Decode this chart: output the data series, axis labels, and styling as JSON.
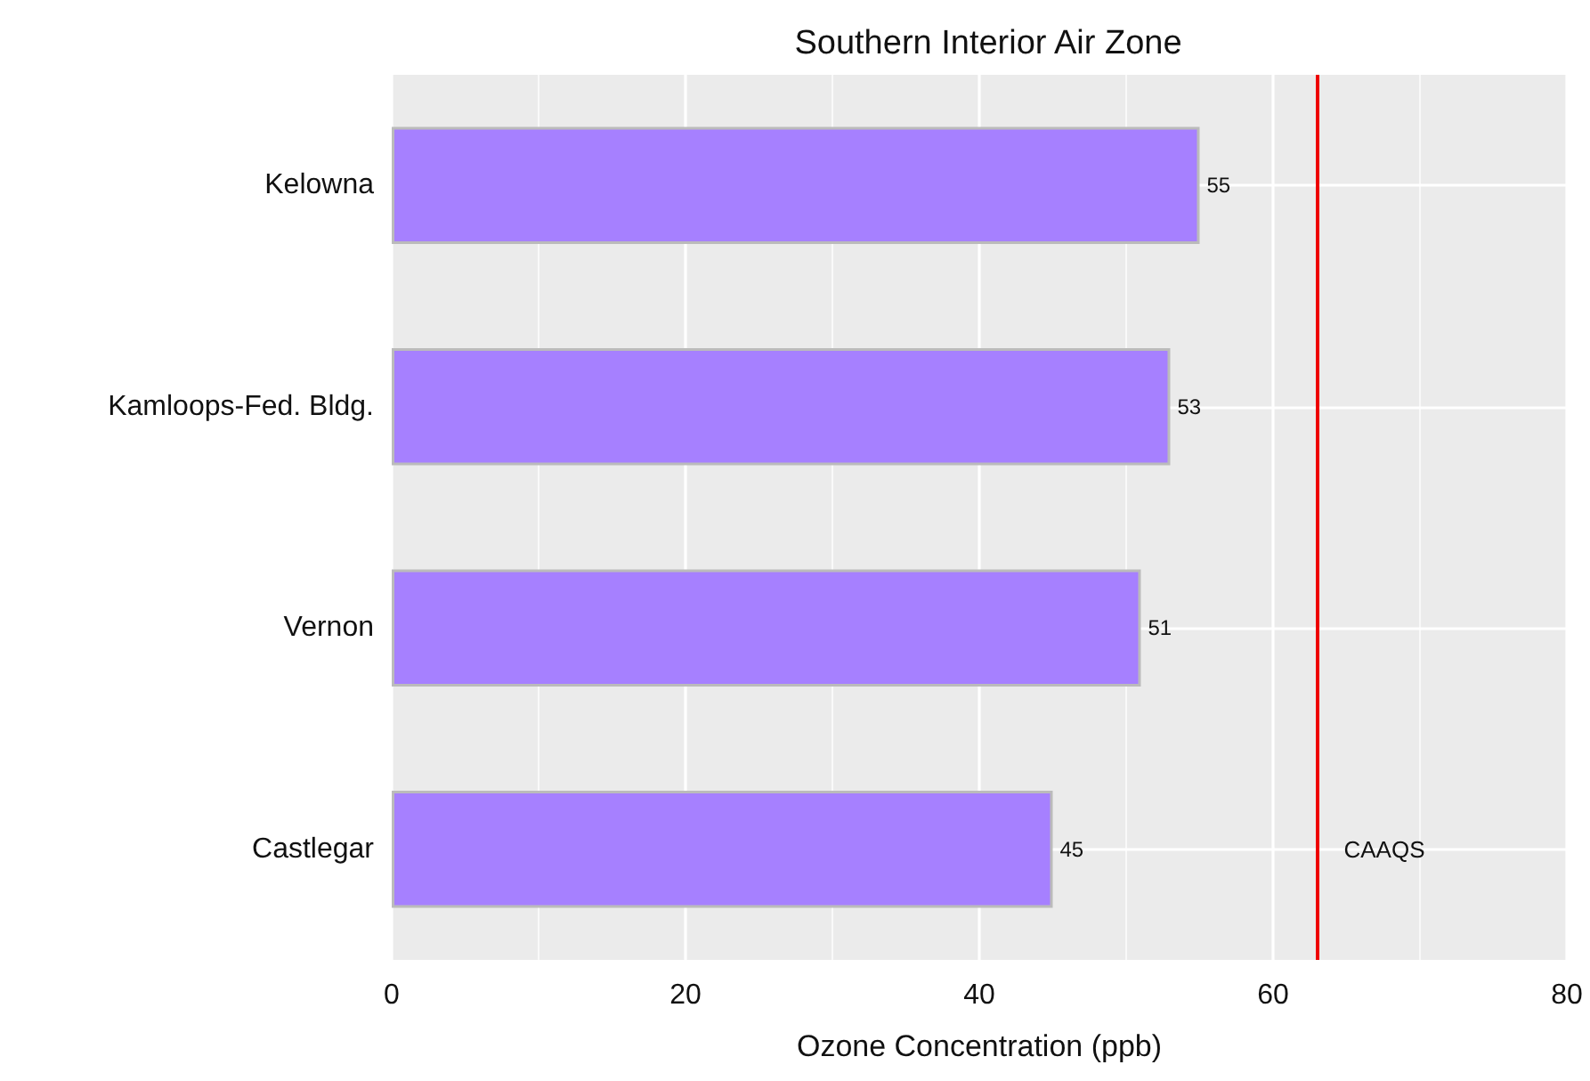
{
  "chart_data": {
    "type": "bar",
    "orientation": "horizontal",
    "title": "Southern Interior Air Zone",
    "xlabel": "Ozone Concentration (ppb)",
    "categories": [
      "Kelowna",
      "Kamloops-Fed. Bldg.",
      "Vernon",
      "Castlegar"
    ],
    "values": [
      55,
      53,
      51,
      45
    ],
    "color": "#a680ff",
    "data_labels": true,
    "xlim": [
      0,
      80
    ],
    "xticks": [
      0,
      20,
      40,
      60,
      80
    ],
    "grid": true,
    "ref_lines": [
      {
        "axis": "x",
        "value": 63,
        "label": "CAAQS",
        "color": "#ee0000",
        "line_style": "solid"
      }
    ]
  }
}
